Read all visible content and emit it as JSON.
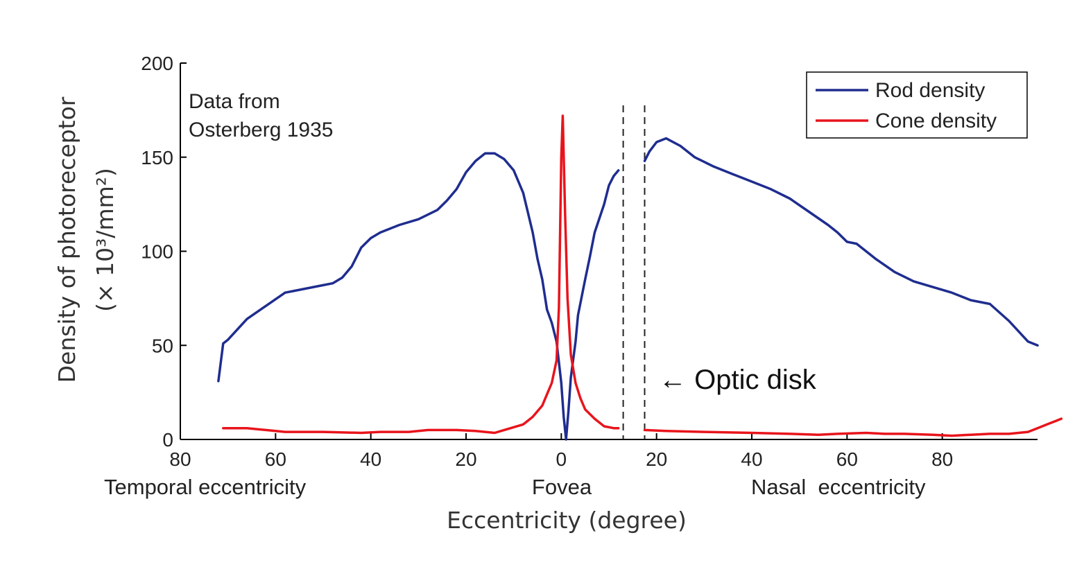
{
  "chart_data": {
    "type": "line",
    "title": "",
    "xlabel": "Eccentricity (degree)",
    "ylabel_line1": "Density of photoreceptor",
    "ylabel_line2": "(× 10³/mm²)",
    "x_tick_labels": [
      "80",
      "60",
      "40",
      "20",
      "0",
      "20",
      "40",
      "60",
      "80"
    ],
    "x_tick_values": [
      -80,
      -60,
      -40,
      -20,
      0,
      20,
      40,
      60,
      80
    ],
    "y_tick_labels": [
      "0",
      "50",
      "100",
      "150",
      "200"
    ],
    "y_tick_values": [
      0,
      50,
      100,
      150,
      200
    ],
    "xlim": [
      -80,
      100
    ],
    "ylim": [
      0,
      200
    ],
    "region_labels": {
      "temporal": "Temporal eccentricity",
      "fovea": "Fovea",
      "nasal": "Nasal  eccentricity"
    },
    "annotation": {
      "line1": "Data from",
      "line2": "Osterberg 1935"
    },
    "optic_disk": {
      "label": "← Optic disk",
      "x_start": 13,
      "x_end": 17.5
    },
    "legend": {
      "position": "top-right",
      "entries": [
        "Rod density",
        "Cone density"
      ]
    },
    "series": [
      {
        "name": "Rod density",
        "color": "#1f2d8f",
        "segments": [
          [
            [
              -72,
              31
            ],
            [
              -71,
              51
            ],
            [
              -70,
              53
            ],
            [
              -66,
              64
            ],
            [
              -62,
              71
            ],
            [
              -58,
              78
            ],
            [
              -56,
              79
            ],
            [
              -50,
              82
            ],
            [
              -48,
              83
            ],
            [
              -46,
              86
            ],
            [
              -44,
              92
            ],
            [
              -42,
              102
            ],
            [
              -40,
              107
            ],
            [
              -38,
              110
            ],
            [
              -34,
              114
            ],
            [
              -30,
              117
            ],
            [
              -26,
              122
            ],
            [
              -24,
              127
            ],
            [
              -22,
              133
            ],
            [
              -20,
              142
            ],
            [
              -18,
              148
            ],
            [
              -16,
              152
            ],
            [
              -14,
              152
            ],
            [
              -12,
              149
            ],
            [
              -10,
              143
            ],
            [
              -8,
              131
            ],
            [
              -6,
              110
            ],
            [
              -5,
              96
            ],
            [
              -4,
              85
            ],
            [
              -3,
              69
            ],
            [
              -2,
              62
            ],
            [
              -1,
              52
            ],
            [
              0,
              30
            ],
            [
              0.5,
              12
            ],
            [
              1,
              0
            ],
            [
              1.5,
              15
            ],
            [
              2,
              33
            ],
            [
              3,
              52
            ],
            [
              3.5,
              66
            ],
            [
              5,
              85
            ],
            [
              6,
              97
            ],
            [
              7,
              110
            ],
            [
              9,
              125
            ],
            [
              10,
              135
            ],
            [
              11,
              140
            ],
            [
              12,
              143
            ]
          ],
          [
            [
              17.5,
              148
            ],
            [
              18.5,
              153
            ],
            [
              20,
              158
            ],
            [
              22,
              160
            ],
            [
              25,
              156
            ],
            [
              28,
              150
            ],
            [
              32,
              145
            ],
            [
              36,
              141
            ],
            [
              40,
              137
            ],
            [
              44,
              133
            ],
            [
              48,
              128
            ],
            [
              52,
              121
            ],
            [
              56,
              114
            ],
            [
              58,
              110
            ],
            [
              60,
              105
            ],
            [
              62,
              104
            ],
            [
              66,
              96
            ],
            [
              70,
              89
            ],
            [
              74,
              84
            ],
            [
              78,
              81
            ],
            [
              82,
              78
            ],
            [
              86,
              74
            ],
            [
              90,
              72
            ],
            [
              94,
              63
            ],
            [
              98,
              52
            ],
            [
              100,
              50
            ]
          ]
        ]
      },
      {
        "name": "Cone density",
        "color": "#e8141c",
        "segments": [
          [
            [
              -71,
              6
            ],
            [
              -66,
              6
            ],
            [
              -62,
              5
            ],
            [
              -58,
              4
            ],
            [
              -50,
              4
            ],
            [
              -42,
              3.5
            ],
            [
              -38,
              4
            ],
            [
              -32,
              4
            ],
            [
              -28,
              5
            ],
            [
              -22,
              5
            ],
            [
              -18,
              4.5
            ],
            [
              -14,
              3.5
            ],
            [
              -12,
              5
            ],
            [
              -8,
              8
            ],
            [
              -6,
              12
            ],
            [
              -4,
              18
            ],
            [
              -3,
              24
            ],
            [
              -2,
              30
            ],
            [
              -1,
              42
            ],
            [
              -0.5,
              70
            ],
            [
              0,
              150
            ],
            [
              0.3,
              172
            ],
            [
              0.8,
              120
            ],
            [
              1.3,
              75
            ],
            [
              2,
              45
            ],
            [
              3,
              30
            ],
            [
              4,
              22
            ],
            [
              5,
              16
            ],
            [
              7,
              11
            ],
            [
              9,
              7
            ],
            [
              11,
              6
            ],
            [
              12,
              6
            ]
          ],
          [
            [
              17.5,
              5
            ],
            [
              22,
              4.5
            ],
            [
              30,
              4
            ],
            [
              40,
              3.5
            ],
            [
              48,
              3
            ],
            [
              54,
              2.5
            ],
            [
              58,
              3
            ],
            [
              64,
              3.5
            ],
            [
              68,
              3
            ],
            [
              72,
              3
            ],
            [
              78,
              2.5
            ],
            [
              82,
              2
            ],
            [
              86,
              2.5
            ],
            [
              90,
              3
            ],
            [
              94,
              3
            ],
            [
              98,
              4
            ],
            [
              100,
              6
            ],
            [
              102,
              8
            ],
            [
              104,
              10
            ],
            [
              105,
              11
            ]
          ]
        ]
      }
    ]
  }
}
